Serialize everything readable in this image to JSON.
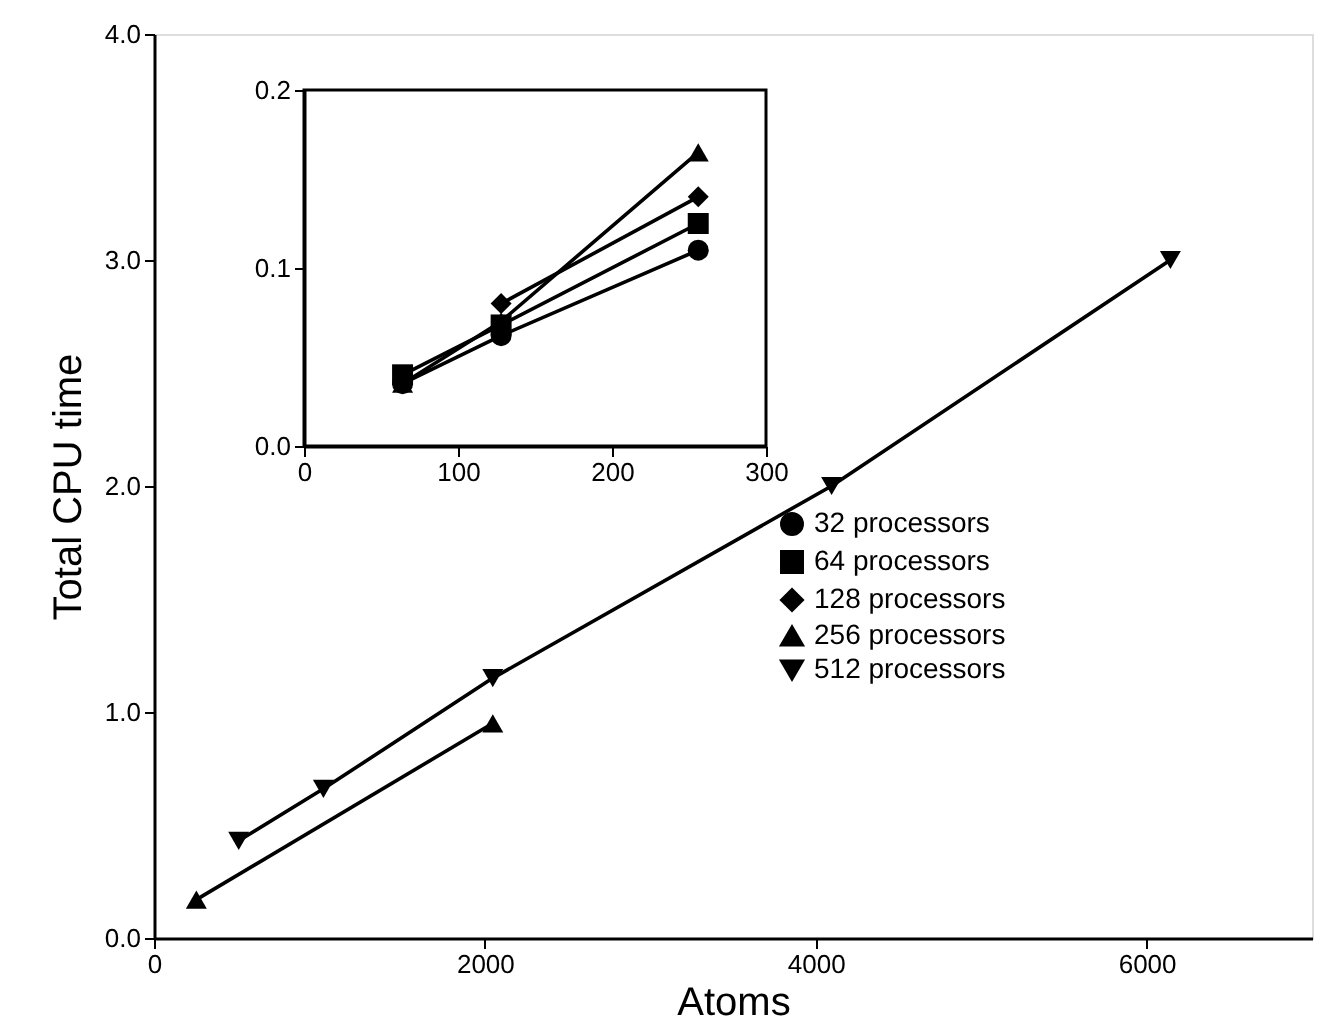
{
  "chart_data": [
    {
      "type": "line",
      "xlabel": "Atoms",
      "ylabel": "Total CPU time",
      "xlim": [
        0,
        7000
      ],
      "ylim": [
        0,
        4
      ],
      "xticks": [
        0,
        2000,
        4000,
        6000
      ],
      "yticks": [
        {
          "value": 0,
          "label": "0.0"
        },
        {
          "value": 1,
          "label": "1.0"
        },
        {
          "value": 2,
          "label": "2.0"
        },
        {
          "value": 3,
          "label": "3.0"
        },
        {
          "value": 4,
          "label": "4.0"
        }
      ],
      "legend": "right",
      "line_style": "solid",
      "series": [
        {
          "name": "256 processors",
          "color": "#000000",
          "marker": "triangle",
          "x": [
            256,
            2048
          ],
          "values": [
            0.17,
            0.95
          ]
        },
        {
          "name": "512 processors",
          "color": "#000000",
          "marker": "triangle-down",
          "x": [
            512,
            1024,
            2048,
            4096,
            6144
          ],
          "values": [
            0.43,
            0.66,
            1.15,
            2.0,
            3.0
          ]
        }
      ]
    },
    {
      "type": "line",
      "xlim": [
        0,
        300
      ],
      "ylim": [
        0,
        0.2
      ],
      "xticks": [
        0,
        100,
        200,
        300
      ],
      "yticks": [
        {
          "value": 0,
          "label": "0.0"
        },
        {
          "value": 0.1,
          "label": "0.1"
        },
        {
          "value": 0.2,
          "label": "0.2"
        }
      ],
      "legend": "right",
      "line_style": "solid",
      "series": [
        {
          "name": "32 processors",
          "color": "#000000",
          "marker": "circle",
          "x": [
            64,
            128,
            256
          ],
          "values": [
            0.035,
            0.062,
            0.11
          ]
        },
        {
          "name": "64 processors",
          "color": "#000000",
          "marker": "square",
          "x": [
            64,
            128,
            256
          ],
          "values": [
            0.04,
            0.068,
            0.125
          ]
        },
        {
          "name": "128 processors",
          "color": "#000000",
          "marker": "diamond",
          "x": [
            128,
            256
          ],
          "values": [
            0.08,
            0.14
          ]
        },
        {
          "color": "#000000",
          "marker": "triangle",
          "x": [
            64,
            128,
            256
          ],
          "values": [
            0.035,
            0.07,
            0.165
          ]
        }
      ]
    }
  ]
}
